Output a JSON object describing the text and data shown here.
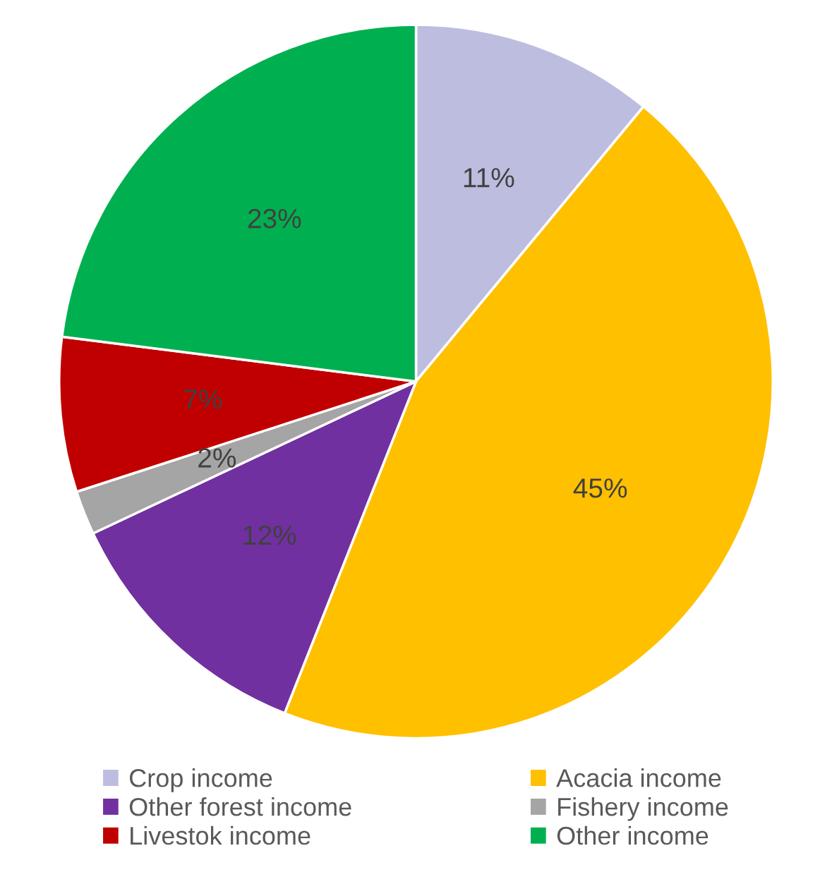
{
  "chart_data": {
    "type": "pie",
    "categories": [
      "Crop income",
      "Acacia income",
      "Other forest income",
      "Fishery income",
      "Livestok income",
      "Other income"
    ],
    "values": [
      11,
      45,
      12,
      2,
      7,
      23
    ],
    "colors": [
      "#bdbddf",
      "#ffc000",
      "#7030a0",
      "#a5a5a5",
      "#c00000",
      "#00b050"
    ],
    "value_labels": [
      "11%",
      "45%",
      "12%",
      "2%",
      "7%",
      "23%"
    ],
    "legend": "bottom"
  }
}
